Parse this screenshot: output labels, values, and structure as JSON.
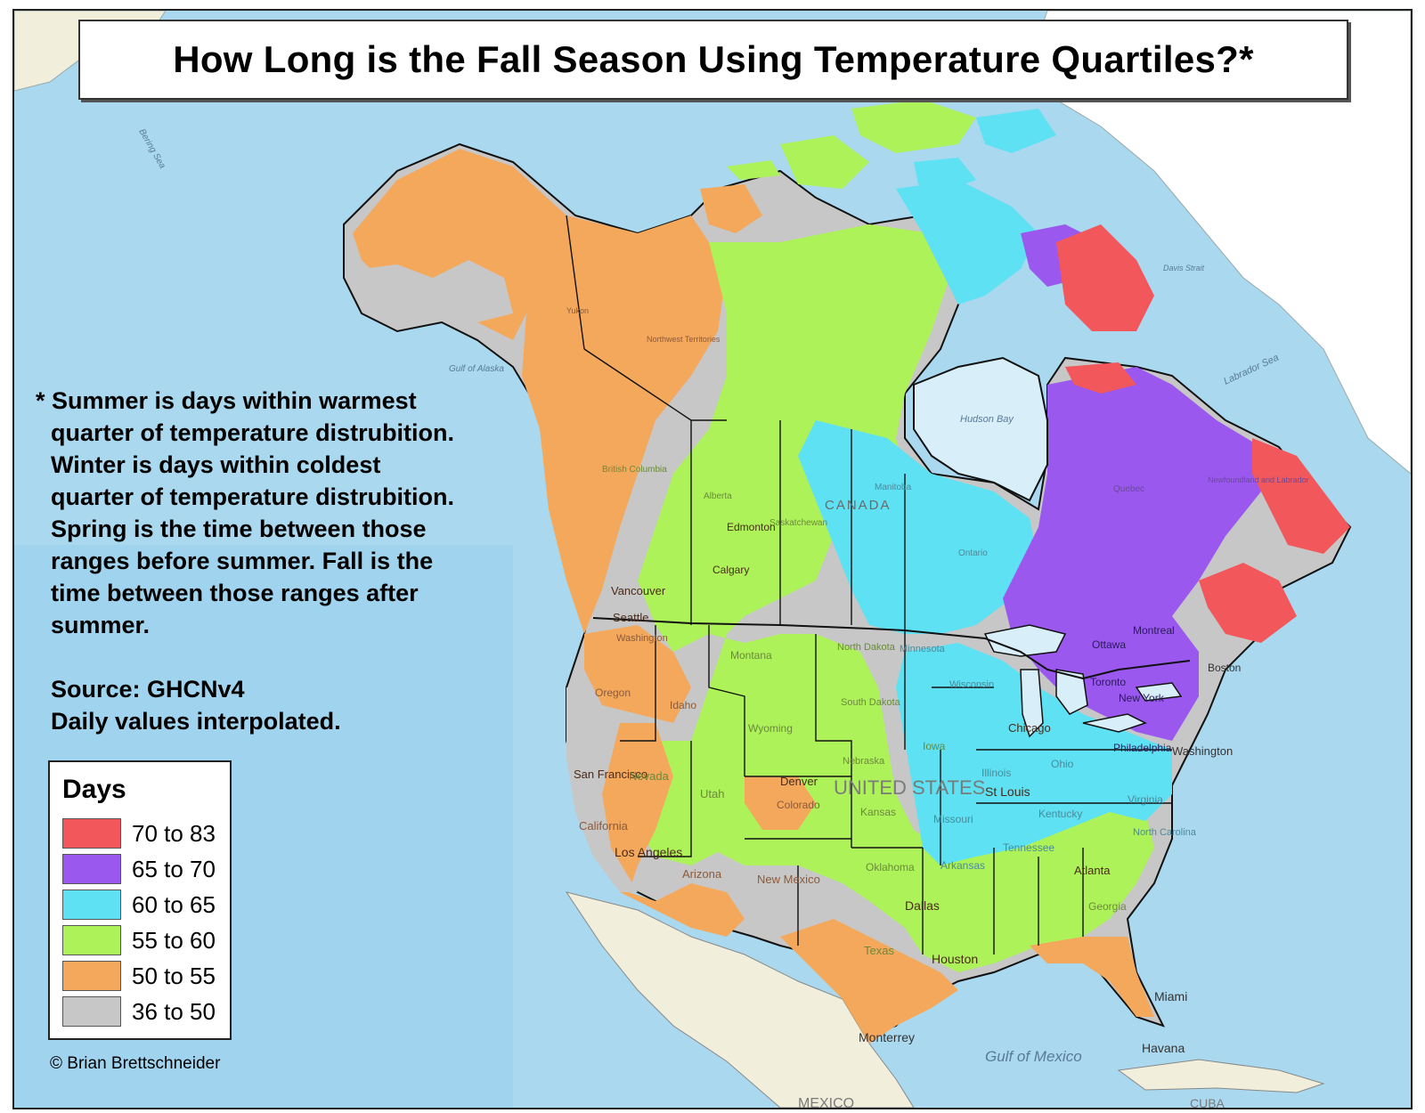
{
  "title": "How Long is the Fall Season Using Temperature Quartiles?*",
  "note": {
    "lines": [
      "* Summer is days within warmest",
      "quarter of temperature distrubition.",
      "Winter is days within coldest",
      "quarter of temperature distrubition.",
      "Spring is the time between those",
      "ranges before summer. Fall is the",
      "time between those ranges after",
      "summer."
    ],
    "source_line": "Source: GHCNv4",
    "interp_line": "Daily values interpolated."
  },
  "legend": {
    "title": "Days",
    "items": [
      {
        "label": "70 to 83",
        "color": "#f2575b"
      },
      {
        "label": "65 to 70",
        "color": "#9a58ef"
      },
      {
        "label": "60 to 65",
        "color": "#5ee1f2"
      },
      {
        "label": "55 to 60",
        "color": "#aef25a"
      },
      {
        "label": "50 to 55",
        "color": "#f4a85c"
      },
      {
        "label": "36 to 50",
        "color": "#c7c7c7"
      }
    ]
  },
  "credit": "© Brian Brettschneider",
  "colors": {
    "ocean": "#a9d8ef",
    "ocean_deep": "#8fcbe9",
    "land_outside": "#f1efdc",
    "greenland_ice": "#ffffff",
    "border": "#111111"
  },
  "places": {
    "oceans": [
      "Bering Sea",
      "Gulf of Alaska",
      "Hudson Bay",
      "Labrador Sea",
      "Davis Strait",
      "Gulf of Mexico"
    ],
    "countries": [
      "CANADA",
      "UNITED STATES",
      "MEXICO",
      "CUBA"
    ],
    "cities": [
      "Edmonton",
      "Calgary",
      "Vancouver",
      "Seattle",
      "San Francisco",
      "Los Angeles",
      "Denver",
      "Chicago",
      "St Louis",
      "Dallas",
      "Houston",
      "Atlanta",
      "Miami",
      "Havana",
      "Monterrey",
      "Ottawa",
      "Montreal",
      "Toronto",
      "New York",
      "Philadelphia",
      "Boston",
      "Washington"
    ],
    "regions": [
      "Yukon",
      "Northwest Territories",
      "British Columbia",
      "Alberta",
      "Saskatchewan",
      "Manitoba",
      "Ontario",
      "Quebec",
      "Newfoundland and Labrador",
      "Montana",
      "North Dakota",
      "South Dakota",
      "Minnesota",
      "Wisconsin",
      "Wyoming",
      "Nebraska",
      "Iowa",
      "Illinois",
      "Ohio",
      "Kansas",
      "Missouri",
      "Kentucky",
      "Tennessee",
      "Virginia",
      "North Carolina",
      "Oklahoma",
      "Arkansas",
      "Georgia",
      "Texas",
      "New Mexico",
      "Arizona",
      "Nevada",
      "Utah",
      "Colorado",
      "California",
      "Oregon",
      "Idaho",
      "Washington"
    ]
  }
}
